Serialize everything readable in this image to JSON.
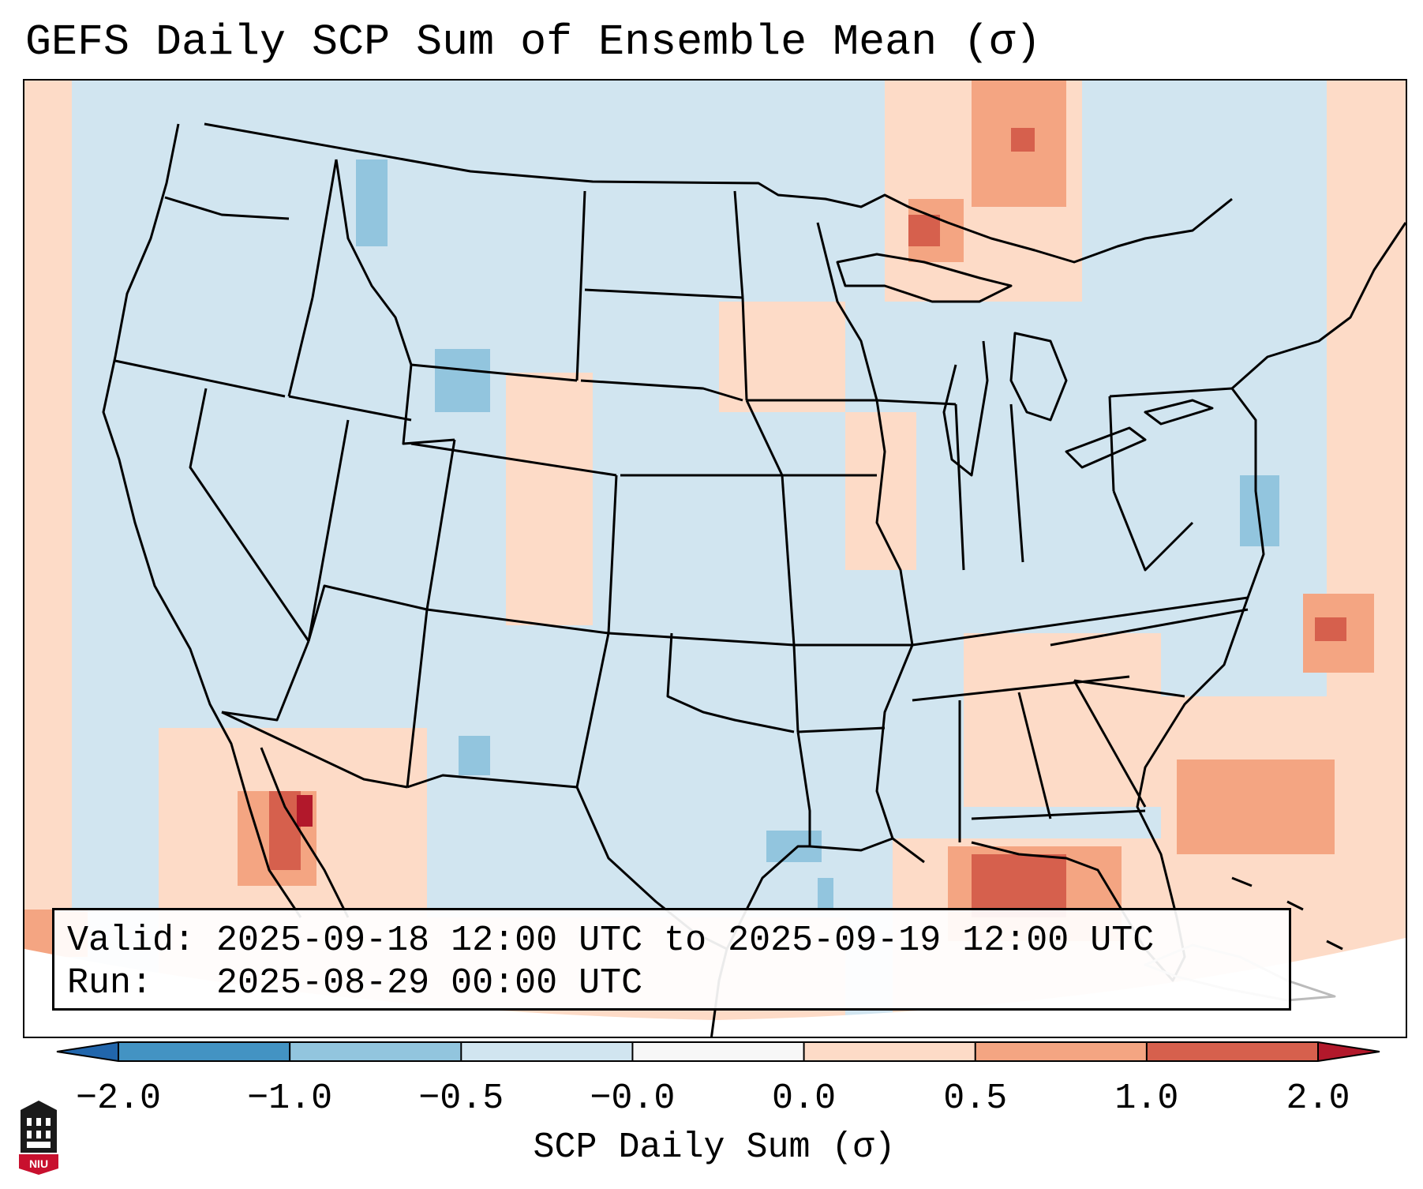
{
  "title": "GEFS Daily SCP Sum of Ensemble Mean (σ)",
  "info": {
    "valid_label": "Valid:",
    "valid_value": "2025-09-18 12:00 UTC to 2025-09-19 12:00 UTC",
    "run_label": "Run:",
    "run_value": "2025-08-29 00:00 UTC"
  },
  "colorbar": {
    "label": "SCP Daily Sum (σ)",
    "ticks": [
      "−2.0",
      "−1.0",
      "−0.5",
      "−0.0",
      "0.0",
      "0.5",
      "1.0",
      "2.0"
    ],
    "colors": [
      "#2166ac",
      "#4393c3",
      "#92c5de",
      "#d1e5f0",
      "#f7f7f7",
      "#fddbc7",
      "#f4a582",
      "#d6604d",
      "#b2182b"
    ]
  },
  "map": {
    "background_color": "#d1e5f0",
    "bounds_note": "CONUS"
  },
  "logo": {
    "text": "NIU"
  }
}
